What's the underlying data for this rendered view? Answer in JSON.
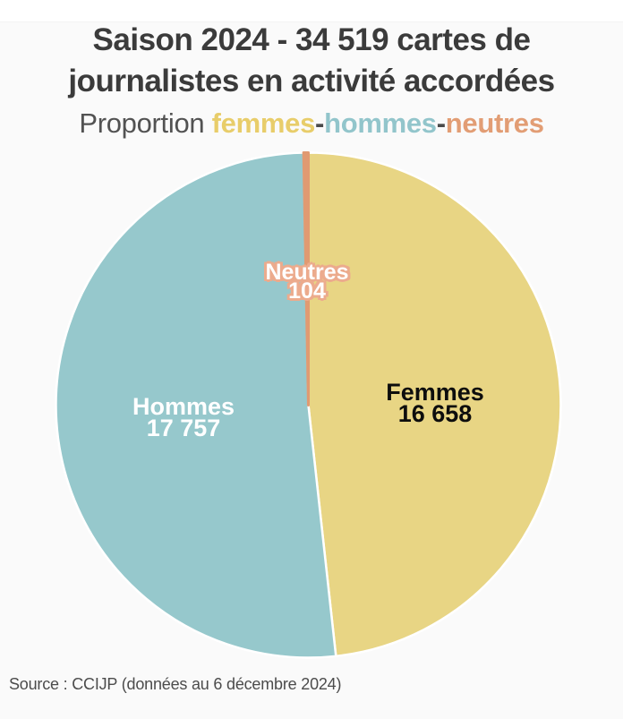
{
  "header": {
    "title": "Saison 2024 - 34 519 cartes de journalistes en activité accordées",
    "subtitle_segments": [
      {
        "text": "Proportion ",
        "color": "#525252",
        "bold": false
      },
      {
        "text": "femmes",
        "color": "#e8cd6a",
        "bold": true
      },
      {
        "text": "-",
        "color": "#4a4a4a",
        "bold": true
      },
      {
        "text": "hommes",
        "color": "#92c5cb",
        "bold": true
      },
      {
        "text": "-",
        "color": "#4a4a4a",
        "bold": true
      },
      {
        "text": "neutres",
        "color": "#e29d74",
        "bold": true
      }
    ]
  },
  "chart_data": {
    "type": "pie",
    "title": "Saison 2024 - 34 519 cartes de journalistes en activité accordées",
    "subtitle": "Proportion femmes-hommes-neutres",
    "total": 34519,
    "total_display": "34 519",
    "direction": "clockwise",
    "start_angle_deg": 0,
    "legend_position": "none",
    "slices": [
      {
        "label": "Femmes",
        "value": 16658,
        "value_display": "16 658",
        "color": "#e8d584",
        "stroke": "#ffffff",
        "label_color": "#0d0d0d"
      },
      {
        "label": "Hommes",
        "value": 17757,
        "value_display": "17 757",
        "color": "#96c8cc",
        "stroke": "#ffffff",
        "label_color": "#ffffff"
      },
      {
        "label": "Neutres",
        "value": 104,
        "value_display": "104",
        "color": "#e09a72",
        "stroke": "#e09a72",
        "label_color": "#ffffff",
        "label_outline_color": "#ecab8d"
      }
    ]
  },
  "footer": {
    "source": "Source : CCIJP (données au 6 décembre 2024)"
  }
}
